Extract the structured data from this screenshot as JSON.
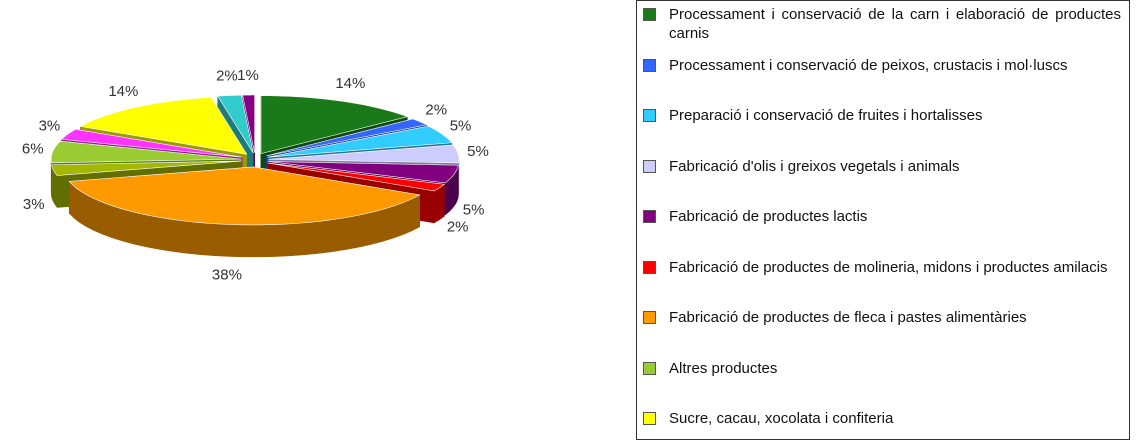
{
  "chart_data": {
    "type": "pie",
    "legend": "right",
    "categories": [
      "Processament i conservació de la carn i elaboració de productes carnis",
      "Processament i conservació de peixos, crustacis i mol·luscs",
      "Preparació i conservació de fruites i hortalisses",
      "Fabricació d'olis i greixos vegetals i animals",
      "Fabricació de productes lactis",
      "Fabricació de productes de molineria, midons i productes amilacis",
      "Fabricació de productes de fleca i pastes alimentàries",
      null,
      "Altres productes",
      null,
      "Sucre, cacau, xocolata i confiteria",
      null,
      null
    ],
    "values": [
      14,
      2,
      5,
      5,
      5,
      2,
      38,
      3,
      6,
      3,
      14,
      2,
      1
    ],
    "value_labels": [
      "14%",
      "2%",
      "5%",
      "5%",
      "5%",
      "2%",
      "38%",
      "3%",
      "6%",
      "3%",
      "14%",
      "2%",
      "1%"
    ],
    "colors": [
      "#1a7a1a",
      "#3366ff",
      "#33ccff",
      "#ccccff",
      "#800080",
      "#ff0000",
      "#ff9900",
      "#a3b800",
      "#99cc33",
      "#ff33ff",
      "#ffff00",
      "#33cccc",
      "#880088"
    ]
  }
}
